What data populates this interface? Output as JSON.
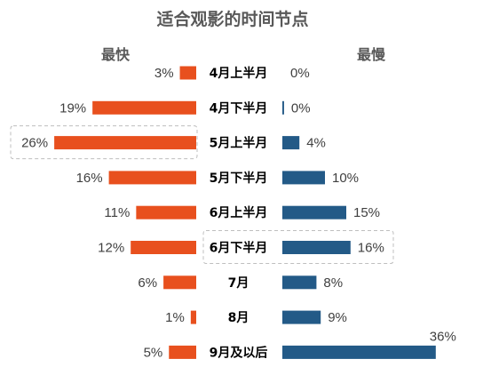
{
  "chart_data": {
    "type": "bar",
    "title": "适合观影的时间节点",
    "categories": [
      "4月上半月",
      "4月下半月",
      "5月上半月",
      "5月下半月",
      "6月上半月",
      "6月下半月",
      "7月",
      "8月",
      "9月及以后"
    ],
    "series": [
      {
        "name": "最快",
        "color": "#E8501E",
        "values": [
          3,
          19,
          26,
          16,
          11,
          12,
          6,
          1,
          5
        ],
        "labels": [
          "3%",
          "19%",
          "26%",
          "16%",
          "11%",
          "12%",
          "6%",
          "1%",
          "5%"
        ]
      },
      {
        "name": "最慢",
        "color": "#235A87",
        "values": [
          0,
          0.4,
          4,
          10,
          15,
          16,
          8,
          9,
          36
        ],
        "labels": [
          "0%",
          "0%",
          "4%",
          "10%",
          "15%",
          "16%",
          "8%",
          "9%",
          "36%"
        ]
      }
    ],
    "grid": false
  }
}
